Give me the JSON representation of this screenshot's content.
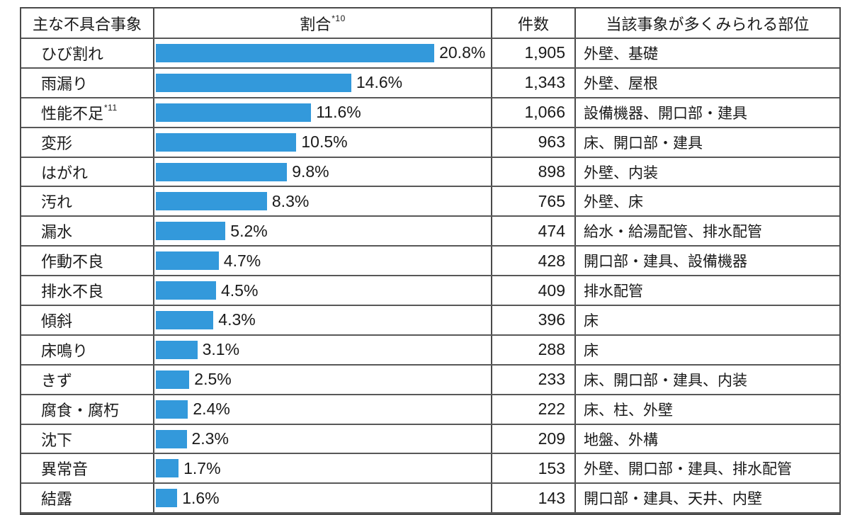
{
  "table": {
    "headers": {
      "phenomenon": "主な不具合事象",
      "ratio": "割合",
      "ratio_note": "*10",
      "count": "件数",
      "parts": "当該事象が多くみられる部位"
    },
    "rows": [
      {
        "label": "ひび割れ",
        "note": "",
        "pct": 20.8,
        "pct_label": "20.8%",
        "count": "1,905",
        "parts": "外壁、基礎"
      },
      {
        "label": "雨漏り",
        "note": "",
        "pct": 14.6,
        "pct_label": "14.6%",
        "count": "1,343",
        "parts": "外壁、屋根"
      },
      {
        "label": "性能不足",
        "note": "*11",
        "pct": 11.6,
        "pct_label": "11.6%",
        "count": "1,066",
        "parts": "設備機器、開口部・建具"
      },
      {
        "label": "変形",
        "note": "",
        "pct": 10.5,
        "pct_label": "10.5%",
        "count": "963",
        "parts": "床、開口部・建具"
      },
      {
        "label": "はがれ",
        "note": "",
        "pct": 9.8,
        "pct_label": "9.8%",
        "count": "898",
        "parts": "外壁、内装"
      },
      {
        "label": "汚れ",
        "note": "",
        "pct": 8.3,
        "pct_label": "8.3%",
        "count": "765",
        "parts": "外壁、床"
      },
      {
        "label": "漏水",
        "note": "",
        "pct": 5.2,
        "pct_label": "5.2%",
        "count": "474",
        "parts": "給水・給湯配管、排水配管"
      },
      {
        "label": "作動不良",
        "note": "",
        "pct": 4.7,
        "pct_label": "4.7%",
        "count": "428",
        "parts": "開口部・建具、設備機器"
      },
      {
        "label": "排水不良",
        "note": "",
        "pct": 4.5,
        "pct_label": "4.5%",
        "count": "409",
        "parts": "排水配管"
      },
      {
        "label": "傾斜",
        "note": "",
        "pct": 4.3,
        "pct_label": "4.3%",
        "count": "396",
        "parts": "床"
      },
      {
        "label": "床鳴り",
        "note": "",
        "pct": 3.1,
        "pct_label": "3.1%",
        "count": "288",
        "parts": "床"
      },
      {
        "label": "きず",
        "note": "",
        "pct": 2.5,
        "pct_label": "2.5%",
        "count": "233",
        "parts": "床、開口部・建具、内装"
      },
      {
        "label": "腐食・腐朽",
        "note": "",
        "pct": 2.4,
        "pct_label": "2.4%",
        "count": "222",
        "parts": "床、柱、外壁"
      },
      {
        "label": "沈下",
        "note": "",
        "pct": 2.3,
        "pct_label": "2.3%",
        "count": "209",
        "parts": "地盤、外構"
      },
      {
        "label": "異常音",
        "note": "",
        "pct": 1.7,
        "pct_label": "1.7%",
        "count": "153",
        "parts": "外壁、開口部・建具、排水配管"
      },
      {
        "label": "結露",
        "note": "",
        "pct": 1.6,
        "pct_label": "1.6%",
        "count": "143",
        "parts": "開口部・建具、天井、内壁"
      }
    ]
  },
  "chart_data": {
    "type": "bar",
    "orientation": "horizontal",
    "categories": [
      "ひび割れ",
      "雨漏り",
      "性能不足",
      "変形",
      "はがれ",
      "汚れ",
      "漏水",
      "作動不良",
      "排水不良",
      "傾斜",
      "床鳴り",
      "きず",
      "腐食・腐朽",
      "沈下",
      "異常音",
      "結露"
    ],
    "series": [
      {
        "name": "割合",
        "values": [
          20.8,
          14.6,
          11.6,
          10.5,
          9.8,
          8.3,
          5.2,
          4.7,
          4.5,
          4.3,
          3.1,
          2.5,
          2.4,
          2.3,
          1.7,
          1.6
        ]
      },
      {
        "name": "件数",
        "values": [
          1905,
          1343,
          1066,
          963,
          898,
          765,
          474,
          428,
          409,
          396,
          288,
          233,
          222,
          209,
          153,
          143
        ]
      }
    ],
    "value_suffix": "%",
    "xlim": [
      0,
      25.2
    ],
    "grid": false,
    "legend": false,
    "bar_color": "#3399db"
  },
  "colors": {
    "bar": "#3399db",
    "border": "#4a4a4a",
    "text": "#1a1a1a"
  }
}
